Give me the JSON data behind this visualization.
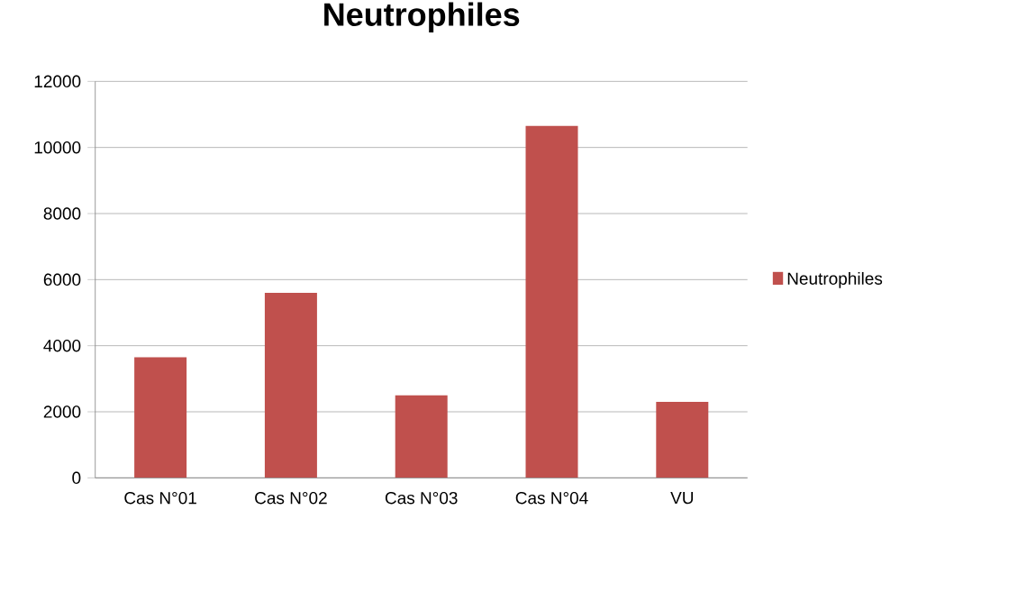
{
  "chart_data": {
    "type": "bar",
    "title": "Neutrophiles",
    "categories": [
      "Cas N°01",
      "Cas N°02",
      "Cas N°03",
      "Cas N°04",
      "VU"
    ],
    "series": [
      {
        "name": "Neutrophiles",
        "color": "#c0504d",
        "values": [
          3650,
          5600,
          2500,
          10650,
          2300
        ]
      }
    ],
    "ylim": [
      0,
      12000
    ],
    "yticks": [
      0,
      2000,
      4000,
      6000,
      8000,
      10000,
      12000
    ],
    "grid": "y",
    "legend": "right"
  }
}
